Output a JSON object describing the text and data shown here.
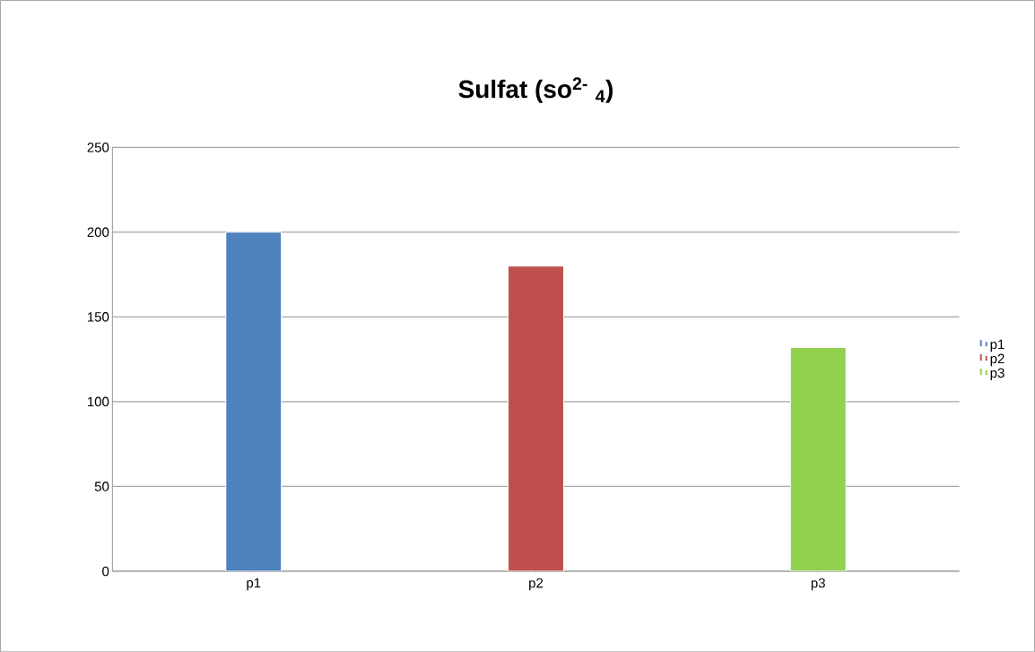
{
  "chart_data": {
    "type": "bar",
    "title": "Sulfat (so$^{2-}$ $_{4}$)",
    "categories": [
      "p1",
      "p2",
      "p3"
    ],
    "series": [
      {
        "name": "p1",
        "color": "#4f81bd",
        "values": [
          200,
          null,
          null
        ]
      },
      {
        "name": "p2",
        "color": "#c0504d",
        "values": [
          null,
          180,
          null
        ]
      },
      {
        "name": "p3",
        "color": "#92d050",
        "values": [
          null,
          null,
          132
        ]
      }
    ],
    "ylim": [
      0,
      250
    ],
    "yticks": [
      0,
      50,
      100,
      150,
      200,
      250
    ],
    "grid": "y",
    "legend": "right"
  }
}
